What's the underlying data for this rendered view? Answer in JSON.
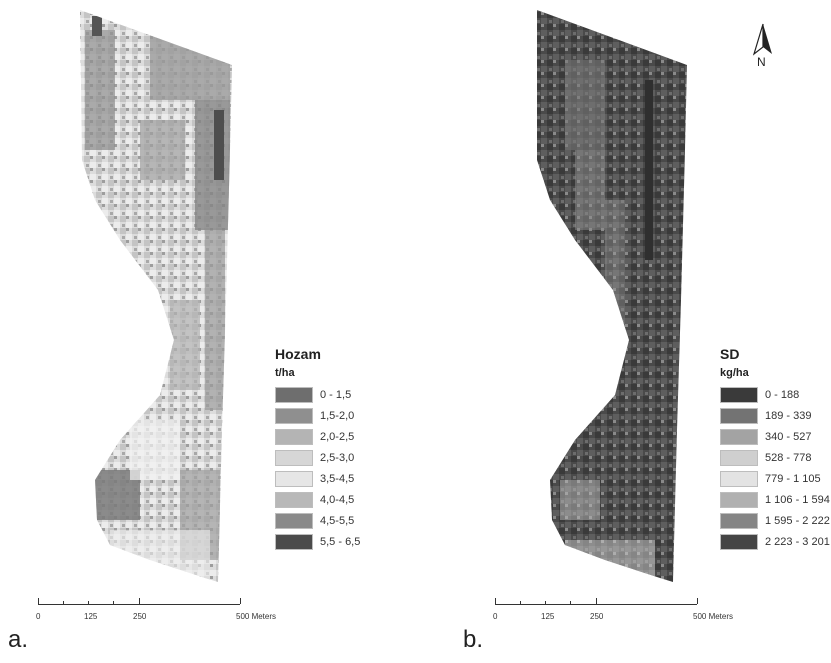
{
  "panel_a": {
    "label": "a.",
    "legend": {
      "title": "Hozam",
      "unit": "t/ha",
      "classes": [
        {
          "label": "0 - 1,5",
          "color": "#6e6e6e"
        },
        {
          "label": "1,5-2,0",
          "color": "#8f8f8f"
        },
        {
          "label": "2,0-2,5",
          "color": "#b4b4b4"
        },
        {
          "label": "2,5-3,0",
          "color": "#d6d6d6"
        },
        {
          "label": "3,5-4,5",
          "color": "#e6e6e6"
        },
        {
          "label": "4,0-4,5",
          "color": "#b8b8b8"
        },
        {
          "label": "4,5-5,5",
          "color": "#8a8a8a"
        },
        {
          "label": "5,5 - 6,5",
          "color": "#4b4b4b"
        }
      ]
    },
    "scale": {
      "labels": [
        "0",
        "125",
        "250",
        "500 Meters"
      ]
    }
  },
  "panel_b": {
    "label": "b.",
    "legend": {
      "title": "SD",
      "unit": "kg/ha",
      "classes": [
        {
          "label": "0 - 188",
          "color": "#3a3a3a"
        },
        {
          "label": "189 - 339",
          "color": "#737373"
        },
        {
          "label": "340 - 527",
          "color": "#a3a3a3"
        },
        {
          "label": "528 - 778",
          "color": "#cfcfcf"
        },
        {
          "label": "779 - 1 105",
          "color": "#e3e3e3"
        },
        {
          "label": "1 106 - 1 594",
          "color": "#b0b0b0"
        },
        {
          "label": "1 595 - 2 222",
          "color": "#858585"
        },
        {
          "label": "2 223 - 3 201",
          "color": "#454545"
        }
      ]
    },
    "scale": {
      "labels": [
        "0",
        "125",
        "250",
        "500 Meters"
      ]
    },
    "north_arrow": {
      "label": "N",
      "icon": "north-arrow-icon"
    }
  }
}
